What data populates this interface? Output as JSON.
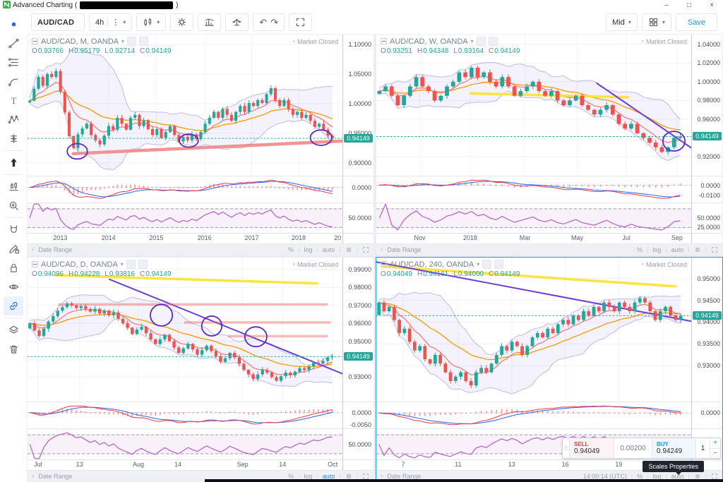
{
  "window": {
    "title_prefix": "Advanced Charting (",
    "title_suffix": ")",
    "minimize": "–",
    "maximize": "□",
    "close": "×"
  },
  "toolbar": {
    "symbol": "AUD/CAD",
    "interval": "4h",
    "kebab": "⋮",
    "undo": "↶",
    "redo": "↷",
    "mid": "Mid",
    "save": "Save"
  },
  "sidebar": {
    "tools": [
      {
        "name": "cursor",
        "icon": "cursor"
      },
      {
        "name": "trend-line",
        "icon": "trend"
      },
      {
        "name": "fib-retracement",
        "icon": "fib"
      },
      {
        "name": "brush",
        "icon": "brush"
      },
      {
        "name": "text",
        "icon": "text"
      },
      {
        "name": "xabcd-pattern",
        "icon": "xabcd"
      },
      {
        "name": "prediction",
        "icon": "prediction",
        "divider_after": true
      },
      {
        "name": "arrow-up",
        "icon": "arrowup",
        "dark": true,
        "divider_after": true
      },
      {
        "name": "bar-pattern",
        "icon": "pattern"
      },
      {
        "name": "zoom-in",
        "icon": "zoomin",
        "divider_after": true
      },
      {
        "name": "magnet",
        "icon": "magnet"
      },
      {
        "name": "drawing-lock",
        "icon": "pencillock"
      },
      {
        "name": "lock-all",
        "icon": "lock"
      },
      {
        "name": "hide-all",
        "icon": "eye"
      },
      {
        "name": "link-charts",
        "icon": "link",
        "active": true,
        "divider_after": true
      },
      {
        "name": "object-tree",
        "icon": "layers"
      },
      {
        "name": "remove-all",
        "icon": "trash"
      }
    ]
  },
  "panels": [
    {
      "name": "monthly",
      "title": "AUD/CAD, M, OANDA",
      "market_status": "Market Closed",
      "ohlc": {
        "O": "0.93766",
        "H": "0.95179",
        "L": "0.92714",
        "C": "0.94149"
      },
      "price_line": {
        "value": 0.94149,
        "label": "0.94149"
      },
      "y_range": [
        0.8778,
        1.1165
      ],
      "y_ticks": [
        1.1,
        1.05,
        1.0,
        0.95,
        0.9
      ],
      "x_ticks": [
        {
          "label": "2013",
          "pos": 0.104
        },
        {
          "label": "2014",
          "pos": 0.257
        },
        {
          "label": "2015",
          "pos": 0.409
        },
        {
          "label": "2016",
          "pos": 0.562
        },
        {
          "label": "2017",
          "pos": 0.712
        },
        {
          "label": "2018",
          "pos": 0.861
        },
        {
          "label": "20",
          "pos": 0.985
        }
      ],
      "closes": [
        1.005,
        1.025,
        1.045,
        1.03,
        1.05,
        1.045,
        1.055,
        1.02,
        0.985,
        0.945,
        0.925,
        0.948,
        0.958,
        0.966,
        0.947,
        0.938,
        0.931,
        0.946,
        0.962,
        0.956,
        0.976,
        0.966,
        0.956,
        0.976,
        0.981,
        0.962,
        0.972,
        0.957,
        0.947,
        0.957,
        0.942,
        0.952,
        0.962,
        0.947,
        0.936,
        0.944,
        0.938,
        0.948,
        0.94,
        0.952,
        0.966,
        0.976,
        0.986,
        0.976,
        0.991,
        0.981,
        0.971,
        0.986,
        0.996,
        0.986,
        1.001,
        0.996,
        1.006,
        1.001,
        1.016,
        1.026,
        1.006,
        0.996,
        1.006,
        0.991,
        0.981,
        0.986,
        0.976,
        0.981,
        0.971,
        0.961,
        0.966,
        0.956,
        0.946,
        0.9415
      ],
      "macd_ticks": [
        {
          "label": "0.0000",
          "value": 0
        }
      ],
      "rsi_ticks": [
        {
          "label": "50.0000",
          "value": 50
        }
      ],
      "annotations": {
        "thick_trend": [
          [
            0.145,
            0.9155
          ],
          [
            1.03,
            0.9375
          ]
        ],
        "circles": [
          [
            0.158,
            0.9195,
            0.032,
            0.013
          ],
          [
            0.512,
            0.9375,
            0.03,
            0.011
          ],
          [
            0.932,
            0.9425,
            0.034,
            0.013
          ]
        ]
      },
      "bottom": {
        "collapse": "‹",
        "date_range": "Date Range",
        "percent": "%",
        "log": "log",
        "auto": "auto",
        "auto_active": false
      },
      "selected": false
    },
    {
      "name": "weekly",
      "title": "AUD/CAD, W, OANDA",
      "market_status": "Market Closed",
      "ohlc": {
        "O": "0.93251",
        "H": "0.94348",
        "L": "0.93164",
        "C": "0.94149"
      },
      "price_line": {
        "value": 0.94149,
        "label": "0.94149"
      },
      "y_range": [
        0.8993,
        1.0504
      ],
      "y_ticks": [
        1.04,
        1.02,
        1.0,
        0.98,
        0.96,
        0.92
      ],
      "x_ticks": [
        {
          "label": "Nov",
          "pos": 0.138
        },
        {
          "label": "2018",
          "pos": 0.298
        },
        {
          "label": "Mar",
          "pos": 0.472
        },
        {
          "label": "May",
          "pos": 0.638
        },
        {
          "label": "Jul",
          "pos": 0.794
        },
        {
          "label": "Sep",
          "pos": 0.955
        }
      ],
      "closes": [
        0.99,
        0.995,
        0.985,
        0.975,
        0.985,
        0.995,
        1.005,
        0.995,
        0.99,
        0.98,
        0.985,
        0.995,
        1.0,
        1.01,
        1.005,
        1.015,
        1.005,
        1.01,
        1.0,
        0.995,
        1.005,
        0.995,
        0.985,
        0.99,
        0.995,
        1.0,
        0.99,
        0.985,
        0.99,
        0.98,
        0.975,
        0.98,
        0.985,
        0.975,
        0.97,
        0.965,
        0.97,
        0.975,
        0.965,
        0.955,
        0.95,
        0.955,
        0.945,
        0.94,
        0.935,
        0.93,
        0.925,
        0.93,
        0.94,
        0.9415
      ],
      "macd_ticks": [
        {
          "label": "0.0000",
          "value": 0
        },
        {
          "label": "-0.0100",
          "value": -0.01
        }
      ],
      "rsi_ticks": [
        {
          "label": "50.0000",
          "value": 50
        },
        {
          "label": "25.0000",
          "value": 25
        }
      ],
      "annotations": {
        "yellow_line": [
          [
            0.3,
            0.9875
          ],
          [
            0.8,
            0.9835
          ]
        ],
        "purple_line": [
          [
            0.7,
            0.9985
          ],
          [
            1.03,
            0.9225
          ]
        ],
        "circles": [
          [
            0.945,
            0.9365,
            0.035,
            0.0105
          ]
        ]
      },
      "bottom": {
        "collapse": "‹",
        "date_range": "Date Range",
        "percent": "%",
        "log": "log",
        "auto": "auto",
        "auto_active": false
      },
      "selected": false
    },
    {
      "name": "daily",
      "title": "AUD/CAD, D, OANDA",
      "market_status": "Market Closed",
      "ohlc": {
        "O": "0.94096",
        "H": "0.94228",
        "L": "0.93816",
        "C": "0.94149"
      },
      "price_line": {
        "value": 0.94149,
        "label": "0.94149"
      },
      "y_range": [
        0.9164,
        0.9966
      ],
      "y_ticks": [
        0.99,
        0.98,
        0.97,
        0.96,
        0.95,
        0.93
      ],
      "x_ticks": [
        {
          "label": "Jul",
          "pos": 0.033
        },
        {
          "label": "13",
          "pos": 0.165
        },
        {
          "label": "Aug",
          "pos": 0.352
        },
        {
          "label": "14",
          "pos": 0.478
        },
        {
          "label": "Sep",
          "pos": 0.683
        },
        {
          "label": "14",
          "pos": 0.81
        },
        {
          "label": "Oct",
          "pos": 0.969
        }
      ],
      "closes": [
        0.96,
        0.956,
        0.953,
        0.957,
        0.961,
        0.964,
        0.967,
        0.969,
        0.971,
        0.97,
        0.9685,
        0.9695,
        0.968,
        0.9665,
        0.968,
        0.9655,
        0.967,
        0.9645,
        0.966,
        0.9625,
        0.96,
        0.9575,
        0.954,
        0.9565,
        0.958,
        0.9545,
        0.951,
        0.9485,
        0.951,
        0.9535,
        0.95,
        0.9465,
        0.9435,
        0.946,
        0.9485,
        0.9455,
        0.9425,
        0.945,
        0.9475,
        0.9445,
        0.9415,
        0.9385,
        0.9405,
        0.9435,
        0.941,
        0.9375,
        0.934,
        0.9315,
        0.929,
        0.9315,
        0.934,
        0.9325,
        0.93,
        0.928,
        0.9305,
        0.9325,
        0.931,
        0.933,
        0.935,
        0.934,
        0.936,
        0.938,
        0.9375,
        0.939,
        0.941,
        0.9415
      ],
      "macd_ticks": [
        {
          "label": "0.0000",
          "value": 0
        },
        {
          "label": "-0.0050",
          "value": -0.005
        }
      ],
      "rsi_ticks": [
        {
          "label": "50.0000",
          "value": 50
        }
      ],
      "annotations": {
        "yellow_line": [
          [
            0.09,
            0.9868
          ],
          [
            0.92,
            0.9822
          ]
        ],
        "purple_line": [
          [
            0.26,
            0.9845
          ],
          [
            1.02,
            0.9305
          ]
        ],
        "levels": [
          [
            0.9705,
            0.1,
            0.95
          ],
          [
            0.9605,
            0.5,
            0.96
          ],
          [
            0.9528,
            0.64,
            0.95
          ]
        ],
        "circles": [
          [
            0.425,
            0.9645,
            0.035,
            0.006
          ],
          [
            0.585,
            0.9585,
            0.032,
            0.0055
          ],
          [
            0.725,
            0.9525,
            0.035,
            0.0055
          ]
        ]
      },
      "bottom": {
        "collapse": "‹",
        "date_range": "Date Range",
        "percent": "%",
        "log": "log",
        "auto": "auto",
        "auto_active": true
      },
      "selected": false
    },
    {
      "name": "h4",
      "title": "AUD/CAD, 240, OANDA",
      "market_status": "Market Closed",
      "ohlc": {
        "O": "0.94049",
        "H": "0.94161",
        "L": "0.94000",
        "C": "0.94149"
      },
      "price_line": {
        "value": 0.94149,
        "label": "0.94149"
      },
      "y_range": [
        0.9218,
        0.9548
      ],
      "y_ticks": [
        0.95,
        0.945,
        0.94,
        0.935,
        0.93
      ],
      "x_ticks": [
        {
          "label": "7",
          "pos": 0.085
        },
        {
          "label": "11",
          "pos": 0.26
        },
        {
          "label": "13",
          "pos": 0.43
        },
        {
          "label": "16",
          "pos": 0.6
        },
        {
          "label": "19",
          "pos": 0.77
        },
        {
          "label": "21",
          "pos": 0.91
        }
      ],
      "closes": [
        0.9445,
        0.9425,
        0.9435,
        0.9405,
        0.9375,
        0.9385,
        0.9355,
        0.9335,
        0.9345,
        0.9315,
        0.9305,
        0.9325,
        0.9305,
        0.9285,
        0.9265,
        0.9275,
        0.9285,
        0.9265,
        0.9255,
        0.9285,
        0.9295,
        0.9285,
        0.9305,
        0.9325,
        0.9345,
        0.9335,
        0.9355,
        0.9345,
        0.9325,
        0.9345,
        0.9365,
        0.9375,
        0.9365,
        0.9385,
        0.9375,
        0.9395,
        0.9405,
        0.9395,
        0.9415,
        0.9405,
        0.9425,
        0.9415,
        0.9435,
        0.9425,
        0.9445,
        0.9435,
        0.9425,
        0.9445,
        0.9435,
        0.9425,
        0.9445,
        0.9455,
        0.9445,
        0.9425,
        0.9405,
        0.9425,
        0.9435,
        0.9415,
        0.9405,
        0.9415
      ],
      "macd_ticks": [
        {
          "label": "0.0000",
          "value": 0
        }
      ],
      "rsi_ticks": [
        {
          "label": "50.0000",
          "value": 50
        }
      ],
      "annotations": {
        "yellow_line": [
          [
            0.02,
            0.9528
          ],
          [
            0.95,
            0.9482
          ]
        ],
        "purple_line": [
          [
            0.0,
            0.9538
          ],
          [
            1.03,
            0.9398
          ]
        ]
      },
      "bottom": {
        "collapse": "‹",
        "date_range": "Date Range",
        "time": "14:00:14 (UTC)",
        "percent": "%",
        "log": "log",
        "auto": "auto",
        "auto_active": false
      },
      "selected": true
    }
  ],
  "trade_widget": {
    "drag_handle": "⠿",
    "sell_label": "SELL",
    "sell_price": "0.94049",
    "spread": "0.00200",
    "buy_label": "BUY",
    "buy_price": "0.94249",
    "quantity": "1",
    "plus": "+",
    "minus": "−"
  },
  "tooltip": {
    "text": "Scales Properties"
  },
  "colors": {
    "up": "#26a69a",
    "down": "#ef5350",
    "accent": "#2196f3",
    "price_tag": "#26a69a",
    "sell": "#f23645",
    "buy": "#2196f3",
    "annotation_purple": "#5b2bbf",
    "annotation_yellow": "#ffe135",
    "annotation_pink": "#f08080",
    "ma_red": "#f77c80",
    "ma_orange": "#ff9800"
  }
}
